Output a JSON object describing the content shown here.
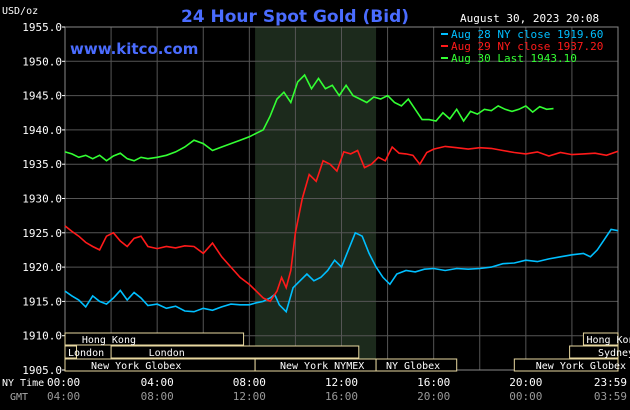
{
  "chart_data": {
    "type": "line",
    "title": "24 Hour Spot Gold (Bid)",
    "unit_label": "USD/oz",
    "timestamp": "August 30, 2023 20:08",
    "watermark": "www.kitco.com",
    "ylim": [
      1905,
      1955
    ],
    "yticks": [
      "1955.0",
      "1950.0",
      "1945.0",
      "1940.0",
      "1935.0",
      "1930.0",
      "1925.0",
      "1920.0",
      "1915.0",
      "1910.0",
      "1905.0"
    ],
    "xlim": [
      0,
      24
    ],
    "xticks": [
      {
        "x": 0,
        "ny": "00:00",
        "gmt": "04:00"
      },
      {
        "x": 4,
        "ny": "04:00",
        "gmt": "08:00"
      },
      {
        "x": 8,
        "ny": "08:00",
        "gmt": "12:00"
      },
      {
        "x": 12,
        "ny": "12:00",
        "gmt": "16:00"
      },
      {
        "x": 16,
        "ny": "16:00",
        "gmt": "20:00"
      },
      {
        "x": 20,
        "ny": "20:00",
        "gmt": "00:00"
      },
      {
        "x": 24,
        "ny": "23:59",
        "gmt": "03:59"
      }
    ],
    "xaxis_label_ny": "NY Time",
    "xaxis_label_gmt": "GMT",
    "shaded_region": [
      8.25,
      13.5
    ],
    "grid": true,
    "legend_position": "top-right",
    "series": [
      {
        "name": "Aug 28 NY close 1919.60",
        "color": "#00bfff",
        "x": [
          0,
          0.3,
          0.6,
          0.9,
          1.2,
          1.5,
          1.8,
          2.1,
          2.4,
          2.7,
          3.0,
          3.3,
          3.6,
          4.0,
          4.4,
          4.8,
          5.2,
          5.6,
          6.0,
          6.4,
          6.8,
          7.2,
          7.6,
          8.0,
          8.3,
          8.6,
          8.9,
          9.1,
          9.3,
          9.6,
          9.9,
          10.2,
          10.5,
          10.8,
          11.1,
          11.4,
          11.7,
          12.0,
          12.3,
          12.6,
          12.9,
          13.2,
          13.5,
          13.8,
          14.1,
          14.4,
          14.8,
          15.2,
          15.6,
          16.0,
          16.5,
          17.0,
          17.5,
          18.0,
          18.5,
          19.0,
          19.5,
          20.0,
          20.5,
          21.0,
          21.5,
          22.0,
          22.5,
          22.8,
          23.1,
          23.4,
          23.7,
          24.0
        ],
        "values": [
          1916.5,
          1915.8,
          1915.2,
          1914.2,
          1915.8,
          1915.0,
          1914.6,
          1915.5,
          1916.6,
          1915.2,
          1916.3,
          1915.5,
          1914.4,
          1914.6,
          1914.0,
          1914.3,
          1913.6,
          1913.5,
          1914.0,
          1913.7,
          1914.2,
          1914.6,
          1914.5,
          1914.5,
          1914.8,
          1915.0,
          1915.5,
          1916.0,
          1914.5,
          1913.5,
          1917.0,
          1918.0,
          1919.0,
          1918.0,
          1918.5,
          1919.5,
          1921.0,
          1920.0,
          1922.5,
          1925.0,
          1924.5,
          1922.0,
          1920.0,
          1918.5,
          1917.5,
          1919.0,
          1919.5,
          1919.3,
          1919.7,
          1919.8,
          1919.5,
          1919.8,
          1919.7,
          1919.8,
          1920.0,
          1920.5,
          1920.6,
          1921.0,
          1920.8,
          1921.2,
          1921.5,
          1921.8,
          1922.0,
          1921.5,
          1922.5,
          1924.0,
          1925.5,
          1925.3
        ]
      },
      {
        "name": "Aug 29 NY close 1937.20",
        "color": "#ff1a1a",
        "x": [
          0,
          0.3,
          0.6,
          0.9,
          1.2,
          1.5,
          1.8,
          2.1,
          2.4,
          2.7,
          3.0,
          3.3,
          3.6,
          4.0,
          4.4,
          4.8,
          5.2,
          5.6,
          6.0,
          6.4,
          6.8,
          7.2,
          7.6,
          8.0,
          8.3,
          8.6,
          8.9,
          9.2,
          9.4,
          9.6,
          9.8,
          10.0,
          10.3,
          10.6,
          10.9,
          11.2,
          11.5,
          11.8,
          12.1,
          12.4,
          12.7,
          13.0,
          13.3,
          13.6,
          13.9,
          14.2,
          14.5,
          14.8,
          15.1,
          15.4,
          15.7,
          16.0,
          16.5,
          17.0,
          17.5,
          18.0,
          18.5,
          19.0,
          19.5,
          20.0,
          20.5,
          21.0,
          21.5,
          22.0,
          22.5,
          23.0,
          23.5,
          24.0
        ],
        "values": [
          1926.0,
          1925.2,
          1924.5,
          1923.6,
          1923.0,
          1922.5,
          1924.5,
          1925.0,
          1923.8,
          1923.0,
          1924.2,
          1924.5,
          1923.0,
          1922.7,
          1923.0,
          1922.8,
          1923.1,
          1923.0,
          1922.0,
          1923.5,
          1921.5,
          1920.0,
          1918.5,
          1917.5,
          1916.5,
          1915.5,
          1915.0,
          1916.5,
          1918.5,
          1917.0,
          1919.5,
          1925.0,
          1930.0,
          1933.5,
          1932.5,
          1935.5,
          1935.0,
          1934.0,
          1936.8,
          1936.5,
          1937.0,
          1934.5,
          1935.0,
          1936.0,
          1935.5,
          1937.5,
          1936.6,
          1936.5,
          1936.3,
          1935.0,
          1936.7,
          1937.2,
          1937.6,
          1937.4,
          1937.2,
          1937.4,
          1937.3,
          1937.0,
          1936.7,
          1936.5,
          1936.8,
          1936.2,
          1936.7,
          1936.4,
          1936.5,
          1936.6,
          1936.3,
          1936.9
        ]
      },
      {
        "name": "Aug 30 Last 1943.10",
        "color": "#33ff33",
        "x": [
          0,
          0.3,
          0.6,
          0.9,
          1.2,
          1.5,
          1.8,
          2.1,
          2.4,
          2.7,
          3.0,
          3.3,
          3.6,
          4.0,
          4.4,
          4.8,
          5.2,
          5.6,
          6.0,
          6.4,
          6.8,
          7.2,
          7.6,
          8.0,
          8.3,
          8.6,
          8.9,
          9.2,
          9.5,
          9.8,
          10.1,
          10.4,
          10.7,
          11.0,
          11.3,
          11.6,
          11.9,
          12.2,
          12.5,
          12.8,
          13.1,
          13.4,
          13.7,
          14.0,
          14.3,
          14.6,
          14.9,
          15.2,
          15.5,
          15.8,
          16.1,
          16.4,
          16.7,
          17.0,
          17.3,
          17.6,
          17.9,
          18.2,
          18.5,
          18.8,
          19.1,
          19.4,
          19.7,
          20.0,
          20.3,
          20.6,
          20.9,
          21.2
        ],
        "values": [
          1936.8,
          1936.5,
          1936.0,
          1936.3,
          1935.8,
          1936.3,
          1935.5,
          1936.2,
          1936.6,
          1935.8,
          1935.5,
          1936.0,
          1935.8,
          1936.0,
          1936.3,
          1936.8,
          1937.5,
          1938.5,
          1938.0,
          1937.0,
          1937.5,
          1938.0,
          1938.5,
          1939.0,
          1939.5,
          1940.0,
          1942.0,
          1944.5,
          1945.5,
          1944.0,
          1947.0,
          1948.0,
          1946.0,
          1947.5,
          1946.0,
          1946.5,
          1945.0,
          1946.5,
          1945.0,
          1944.5,
          1944.0,
          1944.8,
          1944.5,
          1945.0,
          1944.0,
          1943.5,
          1944.5,
          1943.0,
          1941.5,
          1941.5,
          1941.3,
          1942.5,
          1941.6,
          1943.0,
          1941.3,
          1942.7,
          1942.3,
          1943.0,
          1942.8,
          1943.5,
          1943.0,
          1942.7,
          1943.0,
          1943.5,
          1942.6,
          1943.4,
          1943.0,
          1943.1
        ]
      }
    ],
    "market_sessions": [
      {
        "name": "Hong Kong",
        "row": 0,
        "start": 0,
        "end": 7.75,
        "label_at": 0.6
      },
      {
        "name": "Hong Kong",
        "row": 0,
        "start": 22.5,
        "end": 24,
        "label_at": 22.5
      },
      {
        "name": "London",
        "row": 1,
        "start": 0,
        "end": 0.5,
        "label_at": 0
      },
      {
        "name": "London",
        "row": 1,
        "start": 2,
        "end": 12.75,
        "label_at": 3.5
      },
      {
        "name": "Sydney",
        "row": 1,
        "start": 21.9,
        "end": 24,
        "label_at": 23.0
      },
      {
        "name": "New York Globex",
        "row": 2,
        "start": 0,
        "end": 8.25,
        "label_at": 1.0
      },
      {
        "name": "New York NYMEX",
        "row": 2,
        "start": 8.25,
        "end": 13.5,
        "label_at": 9.2
      },
      {
        "name": "NY Globex",
        "row": 2,
        "start": 13.5,
        "end": 17.0,
        "label_at": 13.8
      },
      {
        "name": "New York Globex",
        "row": 2,
        "start": 19.5,
        "end": 24,
        "label_at": 20.3
      }
    ]
  }
}
